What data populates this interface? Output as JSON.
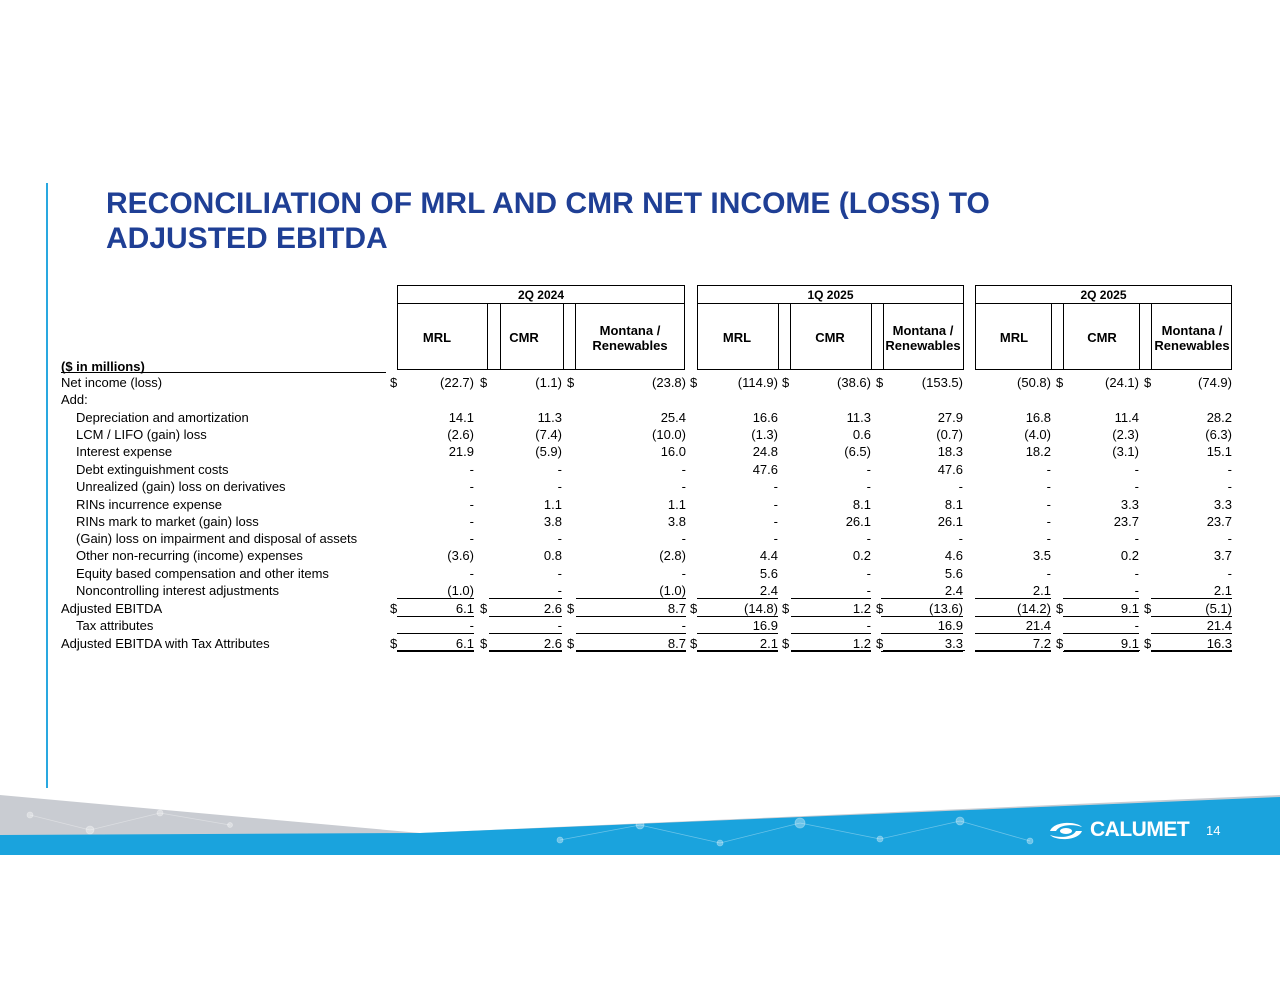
{
  "title": "RECONCILIATION OF MRL AND CMR NET INCOME (LOSS) TO ADJUSTED EBITDA",
  "units_label": "($ in millions)",
  "groups": [
    {
      "label": "2Q 2024",
      "columns": [
        "MRL",
        "CMR",
        "Montana / Renewables"
      ]
    },
    {
      "label": "1Q 2025",
      "columns": [
        "MRL",
        "CMR",
        "Montana / Renewables"
      ]
    },
    {
      "label": "2Q 2025",
      "columns": [
        "MRL",
        "CMR",
        "Montana / Renewables"
      ]
    }
  ],
  "col_headers": [
    "MRL",
    "CMR",
    "Montana /",
    "Renewables"
  ],
  "rows": [
    {
      "label": "Net income (loss)",
      "indent": false,
      "dollar": true,
      "values": [
        "(22.7)",
        "(1.1)",
        "(23.8)",
        "(114.9)",
        "(38.6)",
        "(153.5)",
        "(50.8)",
        "(24.1)",
        "(74.9)"
      ]
    },
    {
      "label": "Add:",
      "indent": false,
      "dollar": false,
      "values": [
        "",
        "",
        "",
        "",
        "",
        "",
        "",
        "",
        ""
      ]
    },
    {
      "label": "Depreciation and amortization",
      "indent": true,
      "dollar": false,
      "values": [
        "14.1",
        "11.3",
        "25.4",
        "16.6",
        "11.3",
        "27.9",
        "16.8",
        "11.4",
        "28.2"
      ]
    },
    {
      "label": "LCM / LIFO (gain) loss",
      "indent": true,
      "dollar": false,
      "values": [
        "(2.6)",
        "(7.4)",
        "(10.0)",
        "(1.3)",
        "0.6",
        "(0.7)",
        "(4.0)",
        "(2.3)",
        "(6.3)"
      ]
    },
    {
      "label": "Interest expense",
      "indent": true,
      "dollar": false,
      "values": [
        "21.9",
        "(5.9)",
        "16.0",
        "24.8",
        "(6.5)",
        "18.3",
        "18.2",
        "(3.1)",
        "15.1"
      ]
    },
    {
      "label": "Debt extinguishment costs",
      "indent": true,
      "dollar": false,
      "values": [
        "-",
        "-",
        "-",
        "47.6",
        "-",
        "47.6",
        "-",
        "-",
        "-"
      ]
    },
    {
      "label": "Unrealized (gain) loss on derivatives",
      "indent": true,
      "dollar": false,
      "values": [
        "-",
        "-",
        "-",
        "-",
        "-",
        "-",
        "-",
        "-",
        "-"
      ]
    },
    {
      "label": "RINs incurrence expense",
      "indent": true,
      "dollar": false,
      "values": [
        "-",
        "1.1",
        "1.1",
        "-",
        "8.1",
        "8.1",
        "-",
        "3.3",
        "3.3"
      ]
    },
    {
      "label": "RINs mark to market (gain) loss",
      "indent": true,
      "dollar": false,
      "values": [
        "-",
        "3.8",
        "3.8",
        "-",
        "26.1",
        "26.1",
        "-",
        "23.7",
        "23.7"
      ]
    },
    {
      "label": "(Gain) loss on impairment and disposal of assets",
      "indent": true,
      "dollar": false,
      "values": [
        "-",
        "-",
        "-",
        "-",
        "-",
        "-",
        "-",
        "-",
        "-"
      ]
    },
    {
      "label": "Other non-recurring (income) expenses",
      "indent": true,
      "dollar": false,
      "values": [
        "(3.6)",
        "0.8",
        "(2.8)",
        "4.4",
        "0.2",
        "4.6",
        "3.5",
        "0.2",
        "3.7"
      ]
    },
    {
      "label": "Equity based compensation and other items",
      "indent": true,
      "dollar": false,
      "values": [
        "-",
        "-",
        "-",
        "5.6",
        "-",
        "5.6",
        "-",
        "-",
        "-"
      ]
    },
    {
      "label": "Noncontrolling interest adjustments",
      "indent": true,
      "dollar": false,
      "values": [
        "(1.0)",
        "-",
        "(1.0)",
        "2.4",
        "-",
        "2.4",
        "2.1",
        "-",
        "2.1"
      ]
    },
    {
      "label": "Adjusted EBITDA",
      "indent": false,
      "dollar": true,
      "values": [
        "6.1",
        "2.6",
        "8.7",
        "(14.8)",
        "1.2",
        "(13.6)",
        "(14.2)",
        "9.1",
        "(5.1)"
      ]
    },
    {
      "label": "Tax attributes",
      "indent": true,
      "dollar": false,
      "values": [
        "-",
        "-",
        "-",
        "16.9",
        "-",
        "16.9",
        "21.4",
        "-",
        "21.4"
      ]
    },
    {
      "label": "Adjusted EBITDA with Tax Attributes",
      "indent": false,
      "dollar": true,
      "values": [
        "6.1",
        "2.6",
        "8.7",
        "2.1",
        "1.2",
        "3.3",
        "7.2",
        "9.1",
        "16.3"
      ]
    }
  ],
  "footer": {
    "logo": "CALUMET",
    "page_number": "14",
    "logo_icon": "calumet-swirl-icon"
  },
  "colors": {
    "title": "#1f3f95",
    "accent": "#29a8e0",
    "band_blue": "#1aa3dd",
    "band_gray": "#c9ccd2"
  }
}
